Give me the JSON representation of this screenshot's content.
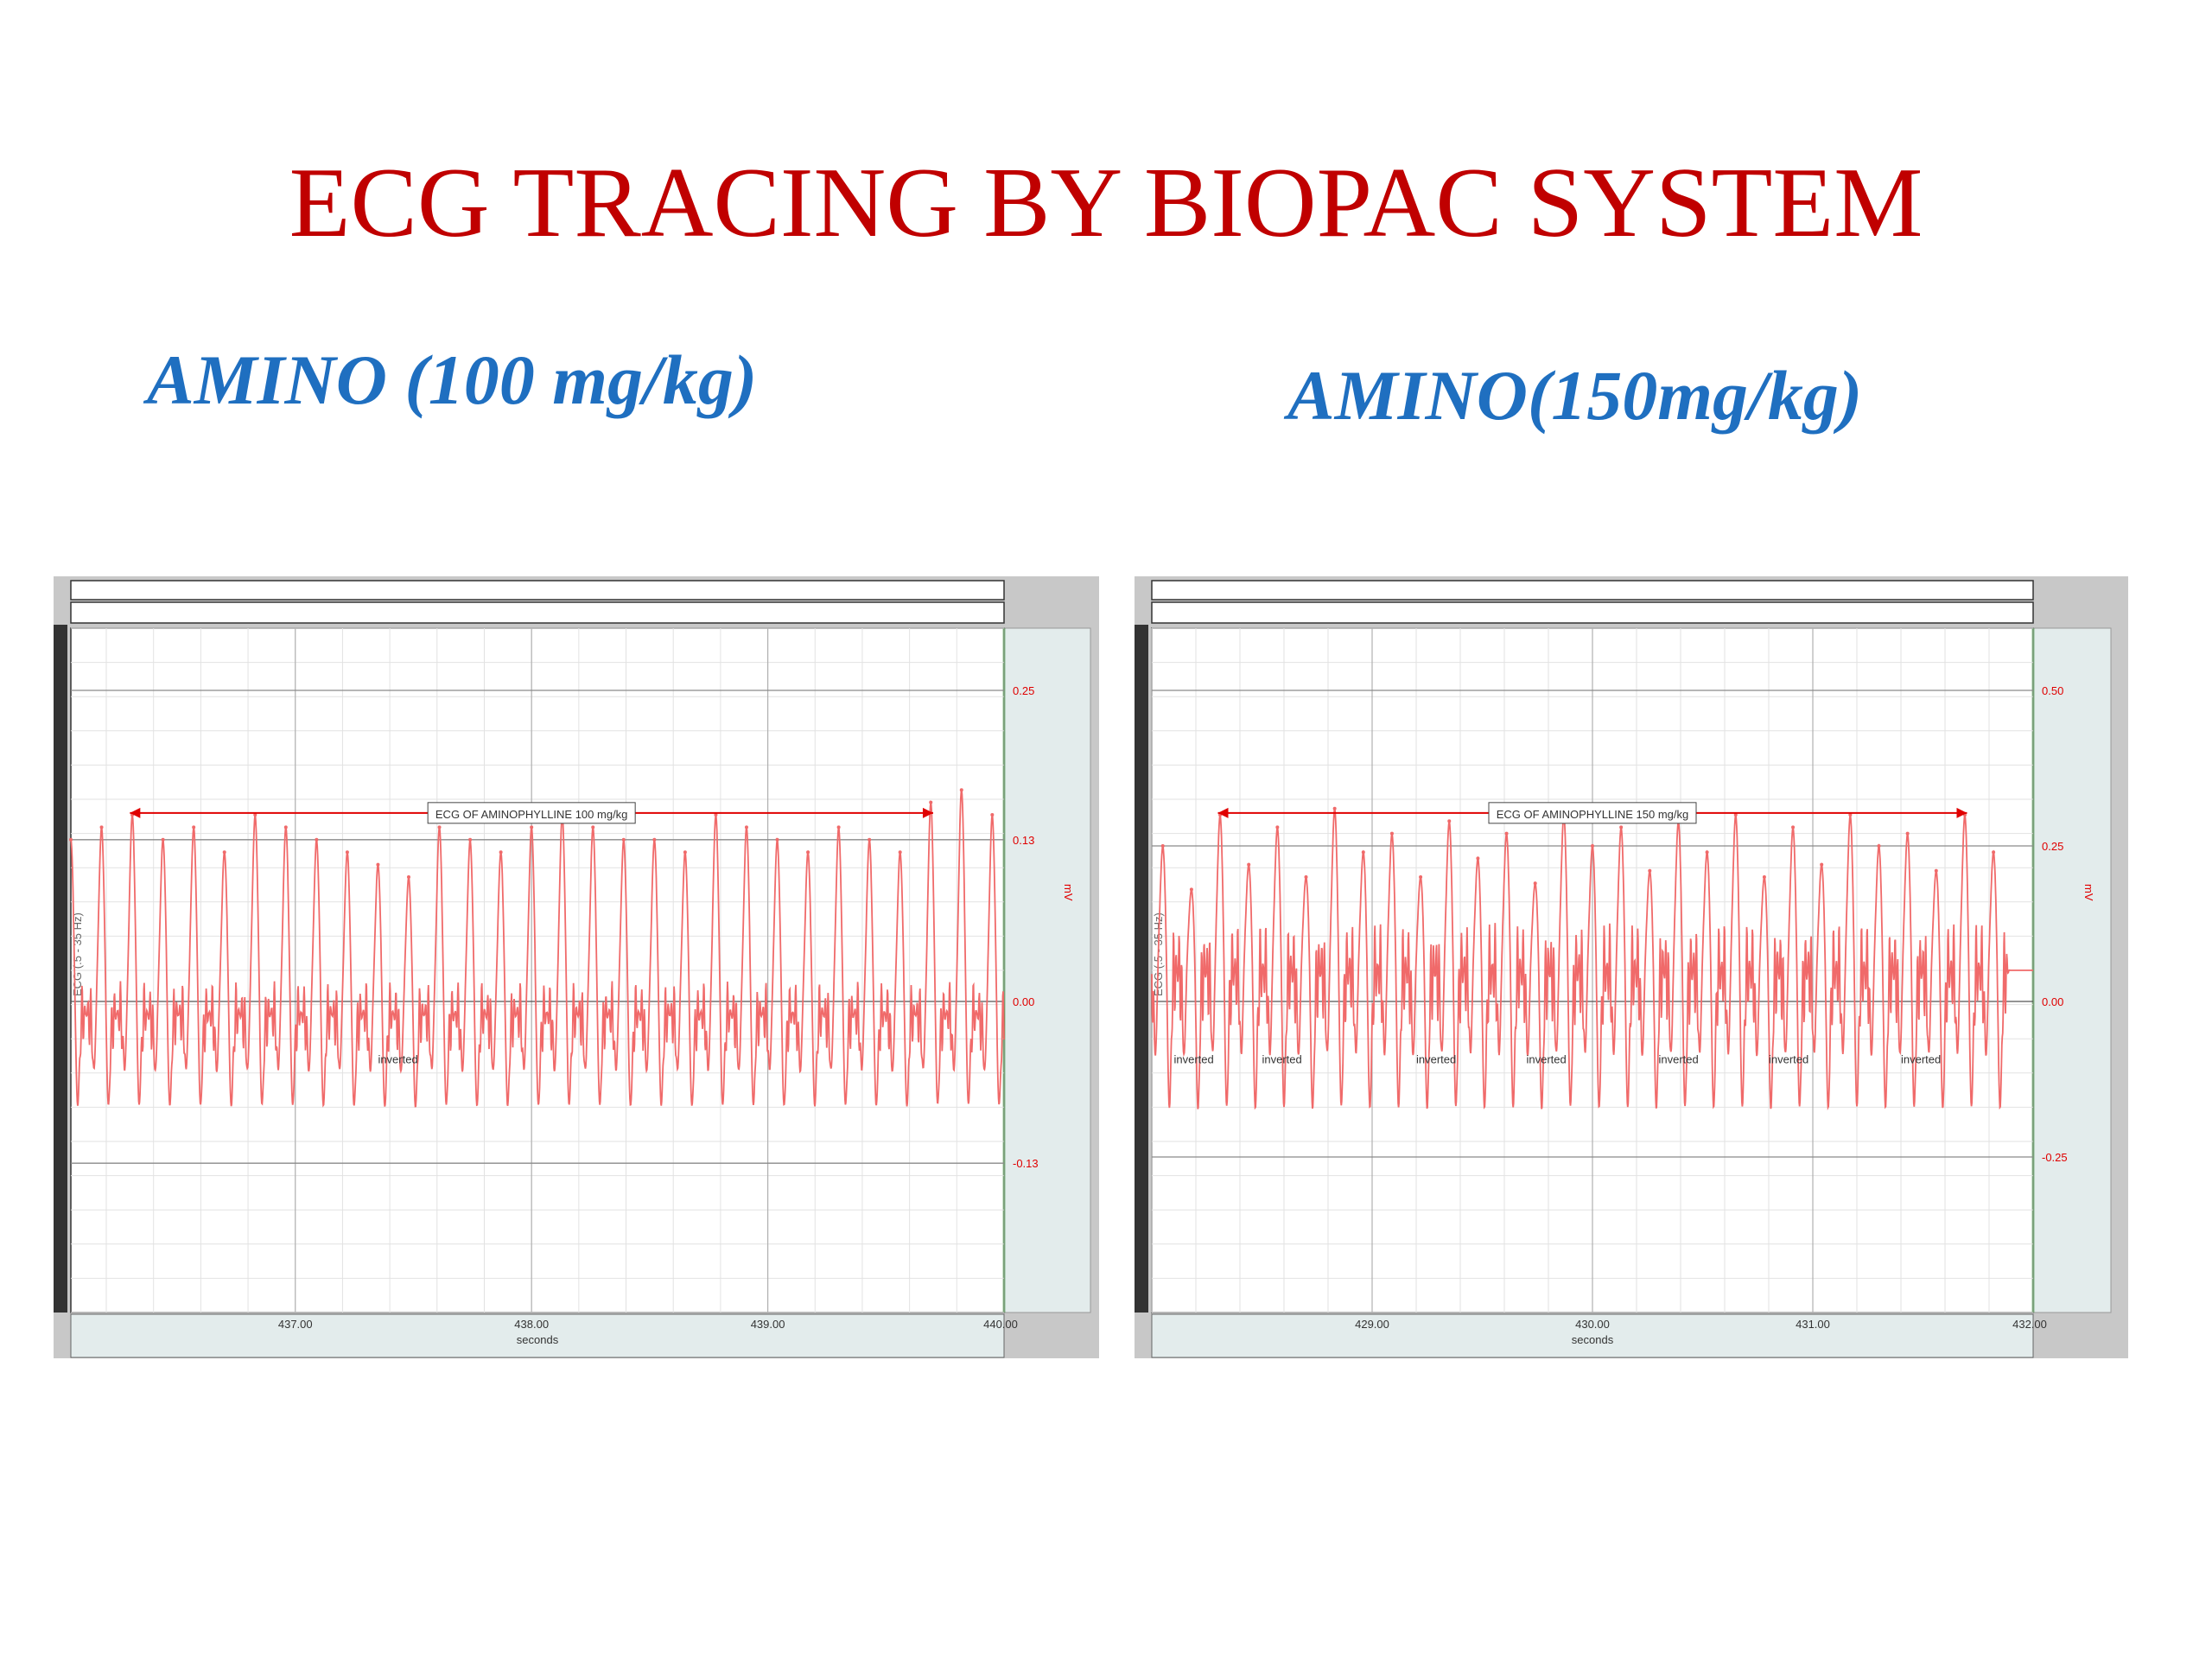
{
  "page": {
    "title": "ECG TRACING BY BIOPAC SYSTEM",
    "subtitle_left": "AMINO (100 mg/kg)",
    "subtitle_right": "AMINO(150mg/kg)",
    "colors": {
      "title": "#c00000",
      "subtitle": "#1f6fc0",
      "trace": "#f06a6a",
      "annotation": "#e00000",
      "frame": "#c8c8c8",
      "scale_panel": "#e3ecec"
    }
  },
  "chart_data": [
    {
      "type": "line",
      "title": "ECG OF AMINOPHYLLINE 100 mg/kg",
      "xlabel": "seconds",
      "ylabel": "mV",
      "channel_label": "ECG (.5 - 35 Hz)",
      "xlim": [
        436.05,
        440.0
      ],
      "ylim": [
        -0.25,
        0.3
      ],
      "x_ticks": [
        "437.00",
        "438.00",
        "439.00",
        "440.00"
      ],
      "x_tick_values": [
        437.0,
        438.0,
        439.0,
        440.0
      ],
      "y_ticks": [
        "0.25",
        "0.13",
        "0.00",
        "-0.13"
      ],
      "y_tick_values": [
        0.25,
        0.13,
        0.0,
        -0.13
      ],
      "grid": true,
      "annotation_span": [
        436.3,
        439.7
      ],
      "inverted_marks": [
        {
          "x": 437.35,
          "label": "inverted"
        }
      ],
      "wave": {
        "beats": 31,
        "r_peak": 0.15,
        "baseline": -0.01,
        "trough": -0.09
      },
      "series": [
        {
          "x": [
            436.05,
            436.18,
            436.31,
            436.44,
            436.57,
            436.7,
            436.83,
            436.96,
            437.09,
            437.22,
            437.35,
            437.48,
            437.61,
            437.74,
            437.87,
            438.0,
            438.13,
            438.26,
            438.39,
            438.52,
            438.65,
            438.78,
            438.91,
            439.04,
            439.17,
            439.3,
            439.43,
            439.56,
            439.69,
            439.82,
            439.95
          ],
          "values": [
            0.13,
            0.14,
            0.15,
            0.13,
            0.14,
            0.12,
            0.15,
            0.14,
            0.13,
            0.12,
            0.11,
            0.1,
            0.14,
            0.13,
            0.12,
            0.14,
            0.15,
            0.14,
            0.13,
            0.13,
            0.12,
            0.15,
            0.14,
            0.13,
            0.12,
            0.14,
            0.13,
            0.12,
            0.16,
            0.17,
            0.15
          ]
        }
      ]
    },
    {
      "type": "line",
      "title": "ECG OF AMINOPHYLLINE 150 mg/kg",
      "xlabel": "seconds",
      "ylabel": "mV",
      "channel_label": "ECG (.5 - 35 Hz)",
      "xlim": [
        428.0,
        432.0
      ],
      "ylim": [
        -0.5,
        0.6
      ],
      "x_ticks": [
        "429.00",
        "430.00",
        "431.00",
        "432.00"
      ],
      "x_tick_values": [
        429.0,
        430.0,
        431.0,
        432.0
      ],
      "y_ticks": [
        "0.50",
        "0.25",
        "0.00",
        "-0.25"
      ],
      "y_tick_values": [
        0.5,
        0.25,
        0.0,
        -0.25
      ],
      "grid": true,
      "annotation_span": [
        428.3,
        431.7
      ],
      "inverted_marks": [
        {
          "x": 428.1,
          "label": "inverted"
        },
        {
          "x": 428.5,
          "label": "inverted"
        },
        {
          "x": 429.2,
          "label": "inverted"
        },
        {
          "x": 429.7,
          "label": "inverted"
        },
        {
          "x": 430.3,
          "label": "inverted"
        },
        {
          "x": 430.8,
          "label": "inverted"
        },
        {
          "x": 431.4,
          "label": "inverted"
        }
      ],
      "wave": {
        "beats": 30,
        "r_peak": 0.28,
        "baseline": 0.05,
        "trough": -0.18
      },
      "series": [
        {
          "x": [
            428.05,
            428.18,
            428.31,
            428.44,
            428.57,
            428.7,
            428.83,
            428.96,
            429.09,
            429.22,
            429.35,
            429.48,
            429.61,
            429.74,
            429.87,
            430.0,
            430.13,
            430.26,
            430.39,
            430.52,
            430.65,
            430.78,
            430.91,
            431.04,
            431.17,
            431.3,
            431.43,
            431.56,
            431.69,
            431.82
          ],
          "values": [
            0.25,
            0.18,
            0.3,
            0.22,
            0.28,
            0.2,
            0.31,
            0.24,
            0.27,
            0.2,
            0.29,
            0.23,
            0.27,
            0.19,
            0.3,
            0.25,
            0.28,
            0.21,
            0.29,
            0.24,
            0.3,
            0.2,
            0.28,
            0.22,
            0.3,
            0.25,
            0.27,
            0.21,
            0.3,
            0.24
          ]
        }
      ]
    }
  ]
}
